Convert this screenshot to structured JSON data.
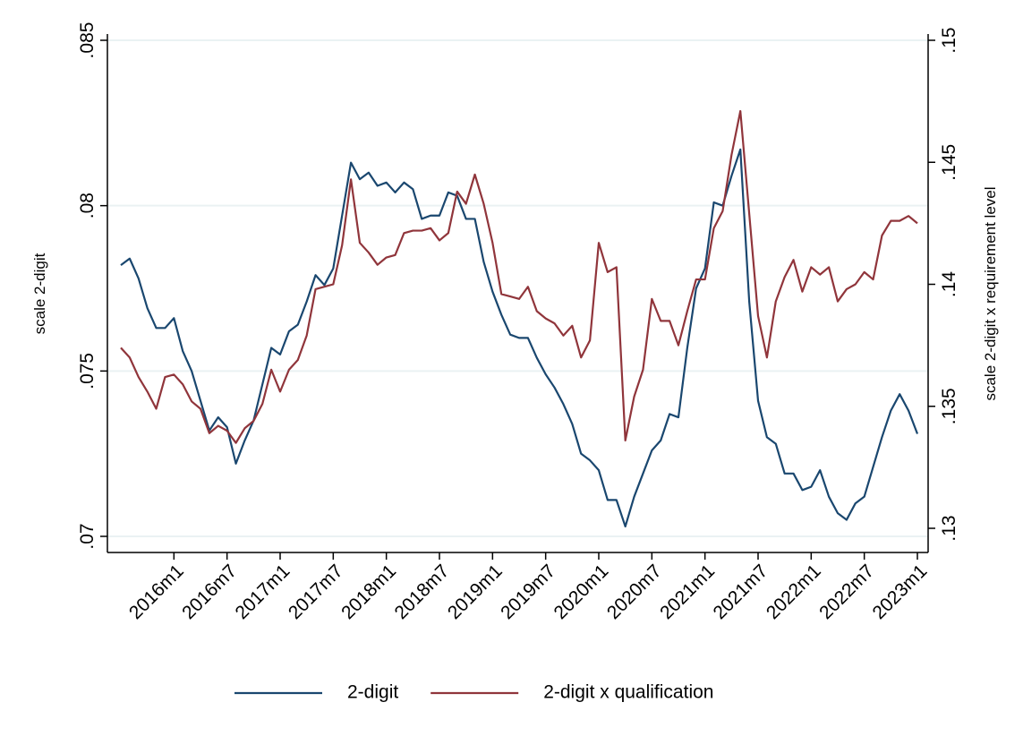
{
  "chart_data": {
    "type": "line",
    "categories": [
      null,
      null,
      null,
      null,
      null,
      null,
      "2016m1",
      null,
      null,
      null,
      null,
      null,
      "2016m7",
      null,
      null,
      null,
      null,
      null,
      "2017m1",
      null,
      null,
      null,
      null,
      null,
      "2017m7",
      null,
      null,
      null,
      null,
      null,
      "2018m1",
      null,
      null,
      null,
      null,
      null,
      "2018m7",
      null,
      null,
      null,
      null,
      null,
      "2019m1",
      null,
      null,
      null,
      null,
      null,
      "2019m7",
      null,
      null,
      null,
      null,
      null,
      "2020m1",
      null,
      null,
      null,
      null,
      null,
      "2020m7",
      null,
      null,
      null,
      null,
      null,
      "2021m1",
      null,
      null,
      null,
      null,
      null,
      "2021m7",
      null,
      null,
      null,
      null,
      null,
      "2022m1",
      null,
      null,
      null,
      null,
      null,
      "2022m7",
      null,
      null,
      null,
      null,
      null,
      "2023m1"
    ],
    "series": [
      {
        "name": "2-digit",
        "color": "#1a476f",
        "axis": "y",
        "values": [
          0.0782,
          0.0784,
          0.0778,
          0.0769,
          0.0763,
          0.0763,
          0.0766,
          0.0756,
          0.075,
          0.0741,
          0.0732,
          0.0736,
          0.0733,
          0.0722,
          0.0729,
          0.0735,
          0.0746,
          0.0757,
          0.0755,
          0.0762,
          0.0764,
          0.0771,
          0.0779,
          0.0776,
          0.0781,
          0.0797,
          0.0813,
          0.0808,
          0.081,
          0.0806,
          0.0807,
          0.0804,
          0.0807,
          0.0805,
          0.0796,
          0.0797,
          0.0797,
          0.0804,
          0.0803,
          0.0796,
          0.0796,
          0.0783,
          0.0774,
          0.0767,
          0.0761,
          0.076,
          0.076,
          0.0754,
          0.0749,
          0.0745,
          0.074,
          0.0734,
          0.0725,
          0.0723,
          0.072,
          0.0711,
          0.0711,
          0.0703,
          0.0712,
          0.0719,
          0.0726,
          0.0729,
          0.0737,
          0.0736,
          0.0757,
          0.0775,
          0.0781,
          0.0801,
          0.08,
          0.0809,
          0.0817,
          0.0771,
          0.0741,
          0.073,
          0.0728,
          0.0719,
          0.0719,
          0.0714,
          0.0715,
          0.072,
          0.0712,
          0.0707,
          0.0705,
          0.071,
          0.0712,
          0.0721,
          0.073,
          0.0738,
          0.0743,
          0.0738,
          0.0731
        ]
      },
      {
        "name": "2-digit x qualification",
        "color": "#90353b",
        "axis": "y2",
        "values": [
          0.1374,
          0.137,
          0.1362,
          0.1356,
          0.1349,
          0.1362,
          0.1363,
          0.1359,
          0.1352,
          0.1349,
          0.1339,
          0.1342,
          0.134,
          0.1335,
          0.1341,
          0.1344,
          0.1351,
          0.1365,
          0.1356,
          0.1365,
          0.1369,
          0.1379,
          0.1398,
          0.1399,
          0.14,
          0.1416,
          0.1443,
          0.1417,
          0.1413,
          0.1408,
          0.1411,
          0.1412,
          0.1421,
          0.1422,
          0.1422,
          0.1423,
          0.1418,
          0.1421,
          0.1438,
          0.1433,
          0.1445,
          0.1433,
          0.1417,
          0.1396,
          0.1395,
          0.1394,
          0.1399,
          0.1389,
          0.1386,
          0.1384,
          0.1379,
          0.1383,
          0.137,
          0.1377,
          0.1417,
          0.1405,
          0.1407,
          0.1336,
          0.1354,
          0.1365,
          0.1394,
          0.1385,
          0.1385,
          0.1375,
          0.1389,
          0.1402,
          0.1402,
          0.1423,
          0.143,
          0.1453,
          0.1471,
          0.1429,
          0.1387,
          0.137,
          0.1393,
          0.1403,
          0.141,
          0.1397,
          0.1407,
          0.1404,
          0.1407,
          0.1393,
          0.1398,
          0.14,
          0.1405,
          0.1402,
          0.142,
          0.1426,
          0.1426,
          0.1428,
          0.1425
        ]
      }
    ],
    "y_label": "scale 2-digit",
    "y2_label": "scale 2-digit x requirement level",
    "ylim": [
      0.07,
      0.085
    ],
    "yticks": [
      {
        "value": 0.07,
        "label": ".07"
      },
      {
        "value": 0.075,
        "label": ".075"
      },
      {
        "value": 0.08,
        "label": ".08"
      },
      {
        "value": 0.085,
        "label": ".085"
      }
    ],
    "y2lim": [
      0.13,
      0.15
    ],
    "y2ticks": [
      {
        "value": 0.13,
        "label": ".13"
      },
      {
        "value": 0.135,
        "label": ".135"
      },
      {
        "value": 0.14,
        "label": ".14"
      },
      {
        "value": 0.145,
        "label": ".145"
      },
      {
        "value": 0.15,
        "label": ".15"
      }
    ],
    "grid": true,
    "legend": "bottom"
  }
}
